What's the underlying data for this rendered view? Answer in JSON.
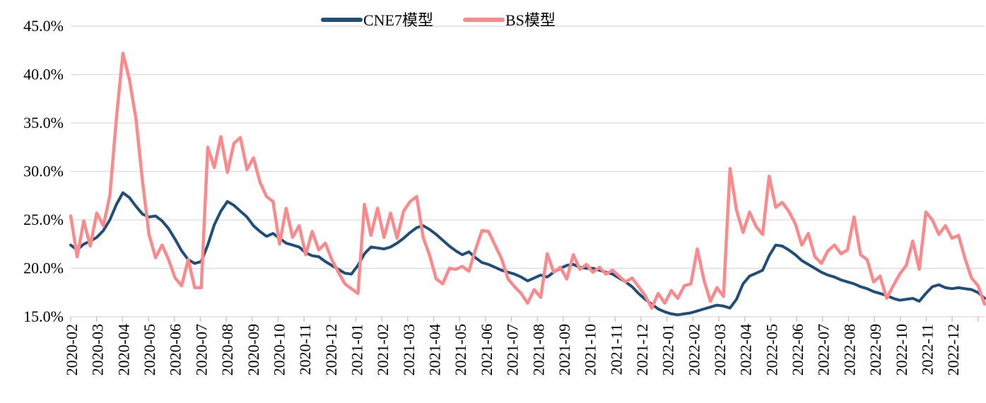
{
  "chart_data": {
    "type": "line",
    "title": "",
    "xlabel": "",
    "ylabel": "",
    "grid": "horizontal",
    "legend_position": "top-center",
    "background": "#ffffff",
    "gridline_color": "#d9d9d9",
    "tick_mark_color": "#bfbfbf",
    "ylim": [
      15,
      45
    ],
    "y_ticks": [
      {
        "value": 45,
        "label": "45.0%"
      },
      {
        "value": 40,
        "label": "40.0%"
      },
      {
        "value": 35,
        "label": "35.0%"
      },
      {
        "value": 30,
        "label": "30.0%"
      },
      {
        "value": 25,
        "label": "25.0%"
      },
      {
        "value": 20,
        "label": "20.0%"
      },
      {
        "value": 15,
        "label": "15.0%"
      }
    ],
    "x_tick_labels": [
      "2020-02",
      "2020-03",
      "2020-04",
      "2020-05",
      "2020-06",
      "2020-07",
      "2020-08",
      "2020-09",
      "2020-10",
      "2020-11",
      "2020-12",
      "2021-01",
      "2021-02",
      "2021-03",
      "2021-04",
      "2021-05",
      "2021-06",
      "2021-07",
      "2021-08",
      "2021-09",
      "2021-10",
      "2021-11",
      "2021-12",
      "2022-01",
      "2022-02",
      "2022-03",
      "2022-04",
      "2022-05",
      "2022-06",
      "2022-07",
      "2022-08",
      "2022-09",
      "2022-10",
      "2022-11",
      "2022-12"
    ],
    "points_per_month": 4,
    "series": [
      {
        "name": "CNE7模型",
        "color": "#1F4E79",
        "stroke_width": 4,
        "values": [
          22.4,
          21.9,
          22.5,
          22.8,
          23.2,
          23.9,
          25.0,
          26.6,
          27.8,
          27.3,
          26.4,
          25.6,
          25.3,
          25.4,
          24.9,
          24.1,
          23.0,
          21.8,
          20.9,
          20.5,
          20.7,
          22.4,
          24.5,
          25.9,
          26.9,
          26.5,
          25.9,
          25.3,
          24.4,
          23.8,
          23.3,
          23.6,
          23.1,
          22.6,
          22.4,
          22.2,
          21.6,
          21.3,
          21.2,
          20.7,
          20.3,
          19.9,
          19.5,
          19.4,
          20.3,
          21.5,
          22.2,
          22.1,
          22.0,
          22.2,
          22.6,
          23.1,
          23.7,
          24.2,
          24.4,
          24.0,
          23.5,
          22.9,
          22.3,
          21.8,
          21.4,
          21.7,
          21.1,
          20.6,
          20.4,
          20.1,
          19.8,
          19.6,
          19.4,
          19.1,
          18.7,
          19.0,
          19.3,
          19.1,
          19.6,
          20.0,
          20.3,
          20.4,
          20.1,
          20.0,
          20.0,
          19.8,
          19.6,
          19.4,
          19.0,
          18.6,
          18.1,
          17.4,
          16.8,
          16.3,
          15.8,
          15.5,
          15.3,
          15.2,
          15.3,
          15.4,
          15.6,
          15.8,
          16.0,
          16.2,
          16.1,
          15.9,
          16.8,
          18.4,
          19.2,
          19.5,
          19.8,
          21.3,
          22.4,
          22.3,
          21.9,
          21.4,
          20.8,
          20.4,
          20.0,
          19.6,
          19.3,
          19.1,
          18.8,
          18.6,
          18.4,
          18.1,
          17.9,
          17.6,
          17.4,
          17.2,
          16.9,
          16.7,
          16.8,
          16.9,
          16.6,
          17.4,
          18.1,
          18.3,
          18.0,
          17.9,
          18.0,
          17.9,
          17.8,
          17.5,
          16.9
        ]
      },
      {
        "name": "BS模型",
        "color": "#FA8A8C",
        "stroke_width": 4.5,
        "values": [
          25.4,
          21.2,
          24.9,
          22.3,
          25.7,
          24.4,
          27.5,
          35.5,
          42.2,
          39.5,
          35.4,
          29.0,
          23.5,
          21.1,
          22.4,
          20.9,
          19.0,
          18.2,
          20.9,
          18.0,
          18.0,
          32.5,
          30.4,
          33.6,
          29.9,
          32.9,
          33.5,
          30.2,
          31.4,
          28.9,
          27.4,
          26.9,
          22.5,
          26.2,
          23.2,
          24.4,
          21.4,
          23.8,
          21.9,
          22.6,
          20.9,
          19.6,
          18.4,
          17.9,
          17.4,
          26.6,
          23.4,
          26.2,
          23.2,
          25.7,
          23.1,
          25.9,
          26.9,
          27.4,
          23.2,
          21.3,
          18.9,
          18.4,
          20.0,
          19.9,
          20.2,
          19.7,
          21.9,
          23.9,
          23.8,
          22.4,
          21.0,
          18.9,
          18.1,
          17.4,
          16.4,
          17.8,
          17.0,
          21.5,
          19.6,
          20.1,
          18.9,
          21.4,
          19.9,
          20.4,
          19.6,
          20.1,
          19.4,
          19.8,
          19.2,
          18.6,
          19.0,
          18.1,
          17.2,
          15.9,
          17.4,
          16.4,
          17.7,
          16.9,
          18.2,
          18.4,
          22.0,
          18.8,
          16.6,
          18.0,
          17.1,
          30.3,
          26.0,
          23.7,
          25.8,
          24.3,
          23.5,
          29.5,
          26.3,
          26.8,
          25.9,
          24.6,
          22.4,
          23.6,
          21.2,
          20.5,
          21.8,
          22.4,
          21.5,
          21.9,
          25.3,
          21.4,
          20.9,
          18.6,
          19.2,
          16.9,
          18.2,
          19.4,
          20.3,
          22.8,
          19.9,
          25.8,
          25.0,
          23.5,
          24.4,
          23.1,
          23.4,
          21.0,
          19.0,
          18.2,
          16.3
        ]
      }
    ]
  },
  "legend": {
    "items": [
      {
        "label": "CNE7模型"
      },
      {
        "label": "BS模型"
      }
    ]
  }
}
